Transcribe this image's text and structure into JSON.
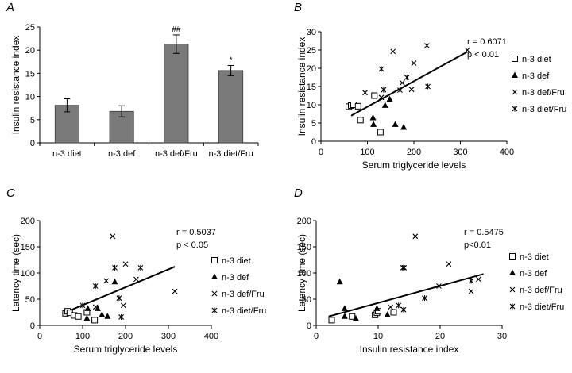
{
  "chart_data": [
    {
      "panel": "A",
      "type": "bar",
      "ylabel": "Insulin resistance index",
      "ylim": [
        0,
        25
      ],
      "yticks": [
        0,
        5,
        10,
        15,
        20,
        25
      ],
      "categories": [
        "n-3 diet",
        "n-3 def",
        "n-3 def/Fru",
        "n-3 diet/Fru"
      ],
      "values": [
        8.1,
        6.8,
        21.3,
        15.6
      ],
      "errors": [
        1.4,
        1.2,
        2.0,
        1.1
      ],
      "annotations": [
        "",
        "",
        "##",
        "*"
      ],
      "bar_color": "#7a7a7a"
    },
    {
      "panel": "B",
      "type": "scatter",
      "xlabel": "Serum triglyceride levels",
      "ylabel": "Insulin resistance index",
      "xlim": [
        0,
        400
      ],
      "ylim": [
        0,
        30
      ],
      "xticks": [
        0,
        100,
        200,
        300,
        400
      ],
      "yticks": [
        0,
        5,
        10,
        15,
        20,
        25,
        30
      ],
      "stat_r": "r = 0.6071",
      "stat_p": "p < 0.01",
      "trend": [
        [
          65,
          7.0
        ],
        [
          315,
          24.5
        ]
      ],
      "legend_position": "right",
      "series": [
        {
          "name": "n-3 diet",
          "marker": "open-square",
          "x": [
            60,
            65,
            70,
            80,
            85,
            115,
            128
          ],
          "y": [
            9.5,
            9.8,
            10.0,
            9.6,
            5.8,
            12.5,
            2.5
          ]
        },
        {
          "name": "n-3 def",
          "marker": "filled-triangle",
          "x": [
            112,
            113,
            138,
            148,
            160,
            178
          ],
          "y": [
            6.4,
            4.6,
            9.8,
            11.5,
            4.6,
            3.8
          ]
        },
        {
          "name": "n-3 def/Fru",
          "marker": "x",
          "x": [
            130,
            155,
            175,
            195,
            200,
            228,
            315
          ],
          "y": [
            12.0,
            24.6,
            16.0,
            14.2,
            21.4,
            26.2,
            25.0
          ]
        },
        {
          "name": "n-3 diet/Fru",
          "marker": "star",
          "x": [
            95,
            130,
            135,
            170,
            185,
            230
          ],
          "y": [
            13.3,
            19.8,
            14.1,
            14.0,
            17.5,
            15.0
          ]
        }
      ]
    },
    {
      "panel": "C",
      "type": "scatter",
      "xlabel": "Serum triglyceride levels",
      "ylabel": "Latency time (sec)",
      "xlim": [
        0,
        400
      ],
      "ylim": [
        0,
        200
      ],
      "xticks": [
        0,
        100,
        200,
        300,
        400
      ],
      "yticks": [
        0,
        50,
        100,
        150,
        200
      ],
      "stat_r": "r = 0.5037",
      "stat_p": "p < 0.05",
      "trend": [
        [
          60,
          25
        ],
        [
          315,
          112
        ]
      ],
      "legend_position": "right",
      "series": [
        {
          "name": "n-3 diet",
          "marker": "open-square",
          "x": [
            60,
            65,
            70,
            80,
            90,
            110,
            128
          ],
          "y": [
            23,
            27,
            24,
            19,
            17,
            25,
            10
          ]
        },
        {
          "name": "n-3 def",
          "marker": "filled-triangle",
          "x": [
            110,
            112,
            135,
            145,
            158,
            175
          ],
          "y": [
            13,
            32,
            32,
            20,
            17,
            83
          ]
        },
        {
          "name": "n-3 def/Fru",
          "marker": "x",
          "x": [
            130,
            155,
            170,
            195,
            200,
            225,
            315
          ],
          "y": [
            35,
            85,
            170,
            38,
            117,
            88,
            65
          ]
        },
        {
          "name": "n-3 diet/Fru",
          "marker": "star",
          "x": [
            100,
            130,
            175,
            185,
            190,
            235
          ],
          "y": [
            38,
            75,
            110,
            52,
            16,
            110
          ]
        }
      ]
    },
    {
      "panel": "D",
      "type": "scatter",
      "xlabel": "Insulin resistance index",
      "ylabel": "Latency time (sec)",
      "xlim": [
        0,
        30
      ],
      "ylim": [
        0,
        200
      ],
      "xticks": [
        0,
        10,
        20,
        30
      ],
      "yticks": [
        0,
        50,
        100,
        150,
        200
      ],
      "stat_r": "r = 0.5475",
      "stat_p": "p<0.01",
      "trend": [
        [
          2,
          17
        ],
        [
          27,
          98
        ]
      ],
      "legend_position": "right",
      "series": [
        {
          "name": "n-3 diet",
          "marker": "open-square",
          "x": [
            2.5,
            5.8,
            9.5,
            9.8,
            10.0,
            12.5
          ],
          "y": [
            10,
            17,
            20,
            24,
            27,
            25
          ]
        },
        {
          "name": "n-3 def",
          "marker": "filled-triangle",
          "x": [
            3.8,
            4.6,
            6.4,
            9.8,
            11.5,
            4.6
          ],
          "y": [
            83,
            32,
            13,
            32,
            20,
            17
          ]
        },
        {
          "name": "n-3 def/Fru",
          "marker": "x",
          "x": [
            12.0,
            16.0,
            14.2,
            21.4,
            25.0,
            26.2
          ],
          "y": [
            35,
            170,
            110,
            117,
            65,
            88
          ]
        },
        {
          "name": "n-3 diet/Fru",
          "marker": "star",
          "x": [
            13.3,
            14.0,
            14.1,
            17.5,
            19.8,
            25.0
          ],
          "y": [
            38,
            110,
            30,
            52,
            75,
            85
          ]
        }
      ]
    }
  ]
}
